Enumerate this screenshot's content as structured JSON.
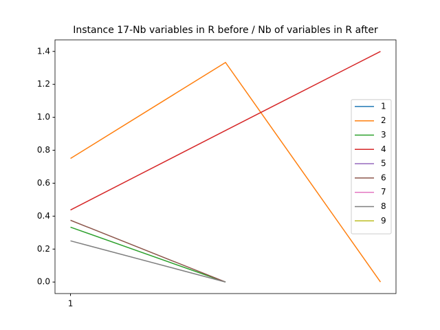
{
  "chart_data": {
    "type": "line",
    "title": "Instance 17-Nb variables in R before / Nb of variables in R after",
    "x": [
      1,
      2,
      3
    ],
    "xlim": [
      0.9,
      3.1
    ],
    "xticks": [
      1
    ],
    "ylim": [
      -0.07,
      1.47
    ],
    "yticks": [
      {
        "value": 0,
        "label": "0.0"
      },
      0.2,
      0.4,
      0.6,
      0.8,
      {
        "value": 1,
        "label": "1.0"
      },
      1.2,
      1.4
    ],
    "legend": "center right",
    "series": [
      {
        "name": "1",
        "color": "#1f77b4",
        "values": [
          null,
          null,
          null
        ]
      },
      {
        "name": "2",
        "color": "#ff7f0e",
        "values": [
          0.75,
          1.333,
          0
        ]
      },
      {
        "name": "3",
        "color": "#2ca02c",
        "values": [
          0.333,
          0,
          null
        ]
      },
      {
        "name": "4",
        "color": "#d62728",
        "values": [
          0.4375,
          0.92,
          1.4
        ]
      },
      {
        "name": "5",
        "color": "#9467bd",
        "values": [
          null,
          null,
          null
        ]
      },
      {
        "name": "6",
        "color": "#8c564b",
        "values": [
          0.375,
          0,
          null
        ]
      },
      {
        "name": "7",
        "color": "#e377c2",
        "values": [
          null,
          null,
          null
        ]
      },
      {
        "name": "8",
        "color": "#7f7f7f",
        "values": [
          0.25,
          0,
          null
        ]
      },
      {
        "name": "9",
        "color": "#bcbd22",
        "values": [
          null,
          null,
          null
        ]
      }
    ]
  }
}
